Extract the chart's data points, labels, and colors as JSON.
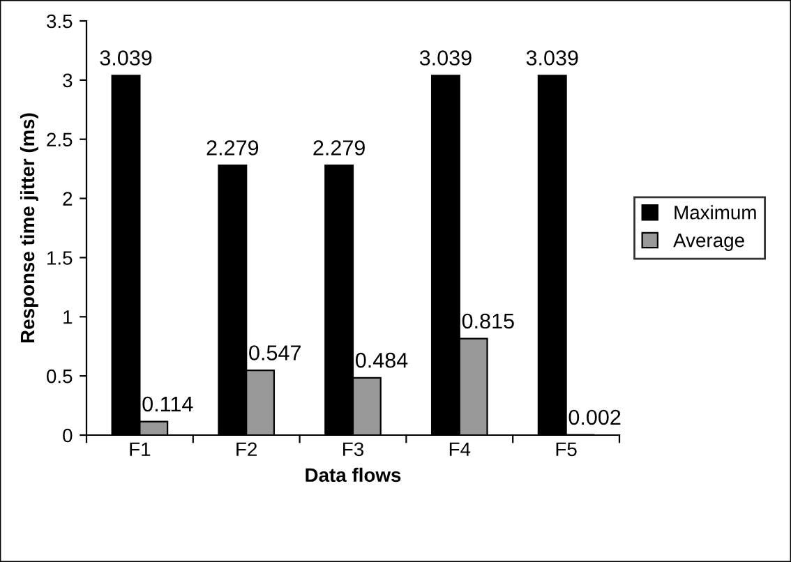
{
  "chart_data": {
    "type": "bar",
    "xlabel": "Data flows",
    "ylabel": "Response time jitter (ms)",
    "categories": [
      "F1",
      "F2",
      "F3",
      "F4",
      "F5"
    ],
    "series": [
      {
        "name": "Maximum",
        "color": "#000000",
        "values": [
          3.039,
          2.279,
          2.279,
          3.039,
          3.039
        ]
      },
      {
        "name": "Average",
        "color": "#999999",
        "values": [
          0.114,
          0.547,
          0.484,
          0.815,
          0.002
        ]
      }
    ],
    "ylim": [
      0,
      3.5
    ],
    "yticks": [
      0,
      0.5,
      1,
      1.5,
      2,
      2.5,
      3,
      3.5
    ],
    "data_labels": true,
    "legend": "right",
    "grid": false
  }
}
